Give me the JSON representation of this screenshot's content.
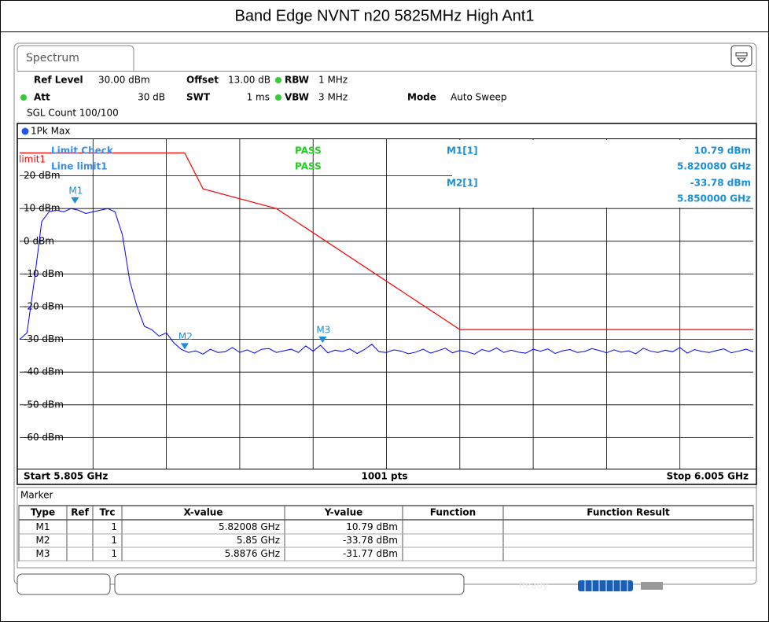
{
  "header": {
    "title": "Band Edge NVNT n20 5825MHz High Ant1"
  },
  "tab": "Spectrum",
  "settings": {
    "ref_level_label": "Ref Level",
    "ref_level": "30.00 dBm",
    "offset_label": "Offset",
    "offset": "13.00 dB",
    "rbw_label": "RBW",
    "rbw": "1 MHz",
    "att_label": "Att",
    "att": "30 dB",
    "swt_label": "SWT",
    "swt": "1 ms",
    "vbw_label": "VBW",
    "vbw": "3 MHz",
    "mode_label": "Mode",
    "mode": "Auto Sweep",
    "sgl_count": "SGL Count 100/100"
  },
  "chart_data": {
    "type": "line",
    "x": [
      5.805,
      5.807,
      5.809,
      5.811,
      5.813,
      5.815,
      5.817,
      5.819,
      5.821,
      5.823,
      5.825,
      5.827,
      5.829,
      5.831,
      5.833,
      5.835,
      5.837,
      5.839,
      5.841,
      5.843,
      5.845,
      5.847,
      5.849,
      5.851,
      5.853,
      5.855,
      5.857,
      5.859,
      5.861,
      5.863,
      5.865,
      5.867,
      5.869,
      5.871,
      5.873,
      5.875,
      5.877,
      5.879,
      5.881,
      5.883,
      5.885,
      5.887,
      5.889,
      5.891,
      5.893,
      5.895,
      5.897,
      5.899,
      5.901,
      5.903,
      5.905,
      5.907,
      5.909,
      5.911,
      5.913,
      5.915,
      5.917,
      5.919,
      5.921,
      5.923,
      5.925,
      5.927,
      5.929,
      5.931,
      5.933,
      5.935,
      5.937,
      5.939,
      5.941,
      5.943,
      5.945,
      5.947,
      5.949,
      5.951,
      5.953,
      5.955,
      5.957,
      5.959,
      5.961,
      5.963,
      5.965,
      5.967,
      5.969,
      5.971,
      5.973,
      5.975,
      5.977,
      5.979,
      5.981,
      5.983,
      5.985,
      5.987,
      5.989,
      5.991,
      5.993,
      5.995,
      5.997,
      5.999,
      6.001,
      6.003,
      6.005
    ],
    "series": [
      {
        "name": "1Pk Max",
        "color": "#0000ff",
        "values": [
          -30,
          -28,
          -12,
          6,
          9,
          9.5,
          9,
          10,
          9.5,
          8.5,
          9,
          9.5,
          10,
          9,
          2,
          -12,
          -20,
          -26,
          -27,
          -29,
          -28,
          -31,
          -33,
          -34,
          -33.5,
          -34.5,
          -33,
          -34,
          -33.8,
          -32.5,
          -34,
          -33.2,
          -34.2,
          -33,
          -32.8,
          -34,
          -33.5,
          -33,
          -34,
          -32,
          -33.6,
          -31.8,
          -34.1,
          -33.3,
          -33.7,
          -32.9,
          -34.3,
          -33.1,
          -31.5,
          -33.8,
          -34,
          -33.2,
          -33.6,
          -34.4,
          -33.9,
          -33,
          -34.2,
          -33.5,
          -32.7,
          -34.1,
          -33.4,
          -33.8,
          -34.5,
          -33.1,
          -33.7,
          -32.6,
          -34,
          -33.3,
          -33.9,
          -34.2,
          -33,
          -33.6,
          -32.9,
          -34.3,
          -33.5,
          -33.1,
          -34,
          -33.7,
          -32.8,
          -33.4,
          -34.1,
          -33.2,
          -33.9,
          -33.5,
          -34.4,
          -32.7,
          -33.6,
          -34,
          -33.3,
          -33.8,
          -32.5,
          -34.2,
          -33.1,
          -33.7,
          -34,
          -33.4,
          -32.9,
          -34.1,
          -33.6,
          -33,
          -33.8
        ]
      }
    ],
    "limit_line": {
      "name": "limit1",
      "color": "#ff0000",
      "x": [
        5.805,
        5.85,
        5.855,
        5.875,
        5.925,
        6.005
      ],
      "values": [
        27,
        27,
        16,
        10,
        -27,
        -27
      ]
    },
    "xlim": [
      5.805,
      6.005
    ],
    "ylim": [
      -70,
      30
    ],
    "yticks": [
      {
        "value": 20,
        "label": "20 dBm"
      },
      {
        "value": 10,
        "label": "10 dBm"
      },
      {
        "value": 0,
        "label": "0 dBm"
      },
      {
        "value": -10,
        "label": "-10 dBm"
      },
      {
        "value": -20,
        "label": "-20 dBm"
      },
      {
        "value": -30,
        "label": "-30 dBm"
      },
      {
        "value": -40,
        "label": "-40 dBm"
      },
      {
        "value": -50,
        "label": "-50 dBm"
      },
      {
        "value": -60,
        "label": "-60 dBm"
      }
    ],
    "grid": true,
    "limit_check": {
      "title": "Limit Check",
      "result": "PASS",
      "line": "Line limit1",
      "line_result": "PASS"
    },
    "marker_info": [
      {
        "label": "M1[1]",
        "value": "10.79 dBm",
        "freq": "5.820080 GHz"
      },
      {
        "label": "M2[1]",
        "value": "-33.78 dBm",
        "freq": "5.850000 GHz"
      }
    ],
    "markers": [
      {
        "name": "M1",
        "x": 5.82008,
        "y": 10.79
      },
      {
        "name": "M2",
        "x": 5.85,
        "y": -33.78
      },
      {
        "name": "M3",
        "x": 5.8876,
        "y": -31.77
      }
    ],
    "start_label": "Start 5.805 GHz",
    "points_label": "1001 pts",
    "stop_label": "Stop 6.005 GHz"
  },
  "marker_table": {
    "title": "Marker",
    "columns": [
      "Type",
      "Ref",
      "Trc",
      "X-value",
      "Y-value",
      "Function",
      "Function Result"
    ],
    "rows": [
      {
        "type": "M1",
        "trc": "1",
        "x": "5.82008 GHz",
        "y": "10.79 dBm"
      },
      {
        "type": "M2",
        "trc": "1",
        "x": "5.85 GHz",
        "y": "-33.78 dBm"
      },
      {
        "type": "M3",
        "trc": "1",
        "x": "5.8876 GHz",
        "y": "-31.77 dBm"
      }
    ]
  },
  "status": "Ready"
}
